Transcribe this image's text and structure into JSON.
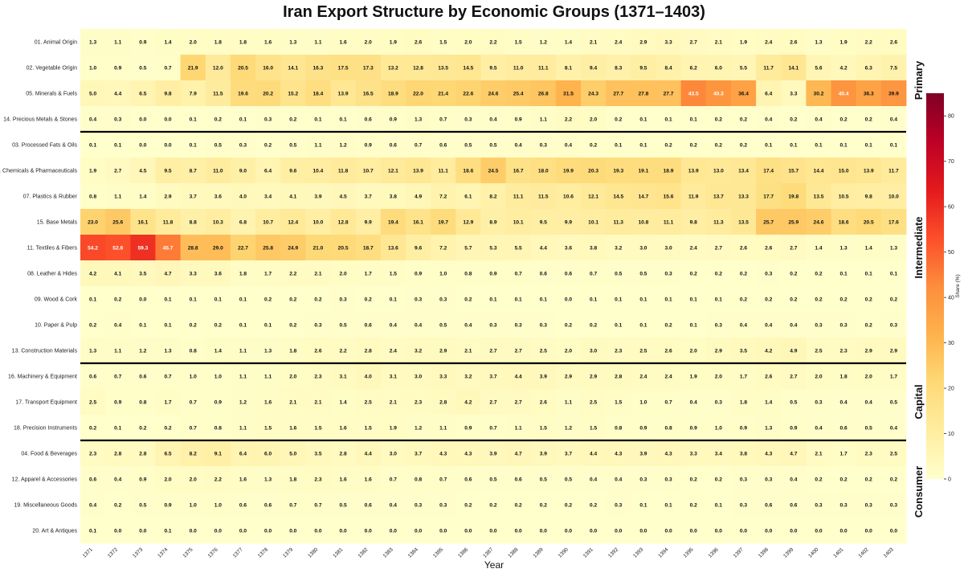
{
  "chart_data": {
    "type": "heatmap",
    "title": "Iran Export Structure by Economic Groups (1371–1403)",
    "xlabel": "Year",
    "colorbar_label": "Share (%)",
    "colorbar_ticks": [
      0,
      10,
      20,
      30,
      40,
      50,
      60,
      70,
      80
    ],
    "color_range": [
      0,
      85
    ],
    "colormap": [
      "#ffffcc",
      "#ffeda0",
      "#fed976",
      "#feb24c",
      "#fd8d3c",
      "#fc4e2a",
      "#e31a1c",
      "#bd0026",
      "#800026"
    ],
    "x": [
      "1371",
      "1372",
      "1373",
      "1374",
      "1375",
      "1376",
      "1377",
      "1378",
      "1379",
      "1380",
      "1381",
      "1382",
      "1383",
      "1384",
      "1385",
      "1386",
      "1387",
      "1388",
      "1389",
      "1390",
      "1391",
      "1392",
      "1393",
      "1394",
      "1395",
      "1396",
      "1397",
      "1398",
      "1399",
      "1400",
      "1401",
      "1402",
      "1403"
    ],
    "groups": [
      {
        "name": "Primary",
        "rows": [
          0,
          1,
          2,
          3
        ]
      },
      {
        "name": "Intermediate",
        "rows": [
          4,
          5,
          6,
          7,
          8,
          9,
          10,
          11,
          12
        ]
      },
      {
        "name": "Capital",
        "rows": [
          13,
          14,
          15
        ]
      },
      {
        "name": "Consumer",
        "rows": [
          16,
          17,
          18,
          19
        ]
      }
    ],
    "rows": [
      {
        "label": "01. Animal Origin",
        "values": [
          1.3,
          1.1,
          0.9,
          1.4,
          2.0,
          1.8,
          1.8,
          1.6,
          1.3,
          1.1,
          1.6,
          2.0,
          1.9,
          2.6,
          1.5,
          2.0,
          2.2,
          1.5,
          1.2,
          1.4,
          2.1,
          2.4,
          2.9,
          3.3,
          2.7,
          2.1,
          1.9,
          2.4,
          2.6,
          1.3,
          1.9,
          2.2,
          2.6
        ]
      },
      {
        "label": "02. Vegetable Origin",
        "values": [
          1.0,
          0.9,
          0.5,
          0.7,
          21.9,
          12.0,
          20.5,
          16.0,
          14.1,
          16.3,
          17.5,
          17.3,
          13.2,
          12.8,
          13.5,
          14.5,
          9.5,
          11.0,
          11.1,
          8.1,
          9.4,
          8.3,
          9.5,
          8.4,
          6.2,
          6.0,
          5.5,
          11.7,
          14.1,
          5.6,
          4.2,
          6.3,
          7.5
        ]
      },
      {
        "label": "05. Minerals & Fuels",
        "values": [
          5.0,
          4.4,
          6.5,
          9.8,
          7.9,
          11.5,
          19.6,
          20.2,
          15.2,
          18.4,
          13.9,
          16.5,
          18.9,
          22.0,
          21.4,
          22.6,
          24.6,
          25.4,
          26.8,
          31.5,
          24.3,
          27.7,
          27.8,
          27.7,
          43.5,
          40.3,
          36.4,
          6.4,
          3.3,
          30.2,
          40.4,
          36.3,
          39.9
        ]
      },
      {
        "label": "14. Precious Metals & Stones",
        "values": [
          0.4,
          0.3,
          0.0,
          0.0,
          0.1,
          0.2,
          0.1,
          0.3,
          0.2,
          0.1,
          0.1,
          0.6,
          0.9,
          1.3,
          0.7,
          0.3,
          0.4,
          0.9,
          1.1,
          2.2,
          2.0,
          0.2,
          0.1,
          0.1,
          0.1,
          0.2,
          0.2,
          0.4,
          0.2,
          0.4,
          0.2,
          0.2,
          0.4
        ]
      },
      {
        "label": "03. Processed Fats & Oils",
        "values": [
          0.1,
          0.1,
          0.0,
          0.0,
          0.1,
          0.5,
          0.3,
          0.2,
          0.5,
          1.1,
          1.2,
          0.9,
          0.6,
          0.7,
          0.6,
          0.5,
          0.5,
          0.4,
          0.3,
          0.4,
          0.2,
          0.1,
          0.1,
          0.2,
          0.2,
          0.2,
          0.2,
          0.1,
          0.1,
          0.1,
          0.1,
          0.1,
          0.1
        ]
      },
      {
        "label": "06. Chemicals & Pharmaceuticals",
        "values": [
          1.9,
          2.7,
          4.5,
          9.5,
          8.7,
          11.0,
          9.0,
          6.4,
          9.6,
          10.4,
          11.8,
          10.7,
          12.1,
          13.9,
          11.1,
          18.6,
          24.5,
          16.7,
          18.0,
          19.9,
          20.3,
          19.3,
          19.1,
          18.9,
          13.9,
          13.0,
          13.4,
          17.4,
          15.7,
          14.4,
          15.0,
          13.9,
          11.7
        ]
      },
      {
        "label": "07. Plastics & Rubber",
        "values": [
          0.8,
          1.1,
          1.4,
          2.9,
          3.7,
          3.6,
          4.0,
          3.4,
          4.1,
          3.9,
          4.5,
          3.7,
          3.8,
          4.9,
          7.2,
          6.1,
          8.2,
          11.1,
          11.5,
          10.6,
          12.1,
          14.5,
          14.7,
          15.6,
          11.9,
          13.7,
          13.3,
          17.7,
          19.8,
          13.5,
          10.5,
          9.8,
          10.0
        ]
      },
      {
        "label": "15. Base Metals",
        "values": [
          23.0,
          25.6,
          16.1,
          11.8,
          8.8,
          10.3,
          6.8,
          10.7,
          12.4,
          10.0,
          12.8,
          9.9,
          19.4,
          16.1,
          19.7,
          12.9,
          8.9,
          10.1,
          9.5,
          9.9,
          10.1,
          11.3,
          10.8,
          11.1,
          9.8,
          11.3,
          13.5,
          25.7,
          25.9,
          24.6,
          18.6,
          20.5,
          17.6
        ]
      },
      {
        "label": "11. Textiles & Fibers",
        "values": [
          54.2,
          52.8,
          59.3,
          45.7,
          28.8,
          29.0,
          22.7,
          25.8,
          24.9,
          21.0,
          20.5,
          18.7,
          13.6,
          9.6,
          7.2,
          5.7,
          5.3,
          5.5,
          4.4,
          3.6,
          3.8,
          3.2,
          3.0,
          3.0,
          2.4,
          2.7,
          2.6,
          2.6,
          2.7,
          1.4,
          1.3,
          1.4,
          1.3
        ]
      },
      {
        "label": "08. Leather & Hides",
        "values": [
          4.2,
          4.1,
          3.5,
          4.7,
          3.3,
          3.6,
          1.8,
          1.7,
          2.2,
          2.1,
          2.0,
          1.7,
          1.5,
          0.9,
          1.0,
          0.8,
          0.9,
          0.7,
          0.6,
          0.6,
          0.7,
          0.5,
          0.5,
          0.3,
          0.2,
          0.2,
          0.2,
          0.3,
          0.2,
          0.2,
          0.1,
          0.1,
          0.1
        ]
      },
      {
        "label": "09. Wood & Cork",
        "values": [
          0.1,
          0.2,
          0.0,
          0.1,
          0.1,
          0.1,
          0.1,
          0.2,
          0.2,
          0.2,
          0.3,
          0.2,
          0.1,
          0.3,
          0.3,
          0.2,
          0.1,
          0.1,
          0.1,
          0.0,
          0.1,
          0.1,
          0.1,
          0.1,
          0.1,
          0.1,
          0.2,
          0.2,
          0.2,
          0.2,
          0.2,
          0.2,
          0.2
        ]
      },
      {
        "label": "10. Paper & Pulp",
        "values": [
          0.2,
          0.4,
          0.1,
          0.1,
          0.2,
          0.2,
          0.1,
          0.1,
          0.2,
          0.3,
          0.5,
          0.6,
          0.4,
          0.4,
          0.5,
          0.4,
          0.3,
          0.3,
          0.3,
          0.2,
          0.2,
          0.1,
          0.1,
          0.2,
          0.1,
          0.3,
          0.4,
          0.4,
          0.4,
          0.3,
          0.3,
          0.2,
          0.3
        ]
      },
      {
        "label": "13. Construction Materials",
        "values": [
          1.3,
          1.1,
          1.2,
          1.3,
          0.8,
          1.4,
          1.1,
          1.3,
          1.8,
          2.6,
          2.2,
          2.8,
          2.4,
          3.2,
          2.9,
          2.1,
          2.7,
          2.7,
          2.5,
          2.0,
          3.0,
          2.3,
          2.5,
          2.6,
          2.0,
          2.9,
          3.5,
          4.2,
          4.9,
          2.5,
          2.3,
          2.9,
          2.9
        ]
      },
      {
        "label": "16. Machinery & Equipment",
        "values": [
          0.6,
          0.7,
          0.6,
          0.7,
          1.0,
          1.0,
          1.1,
          1.1,
          2.0,
          2.3,
          3.1,
          4.0,
          3.1,
          3.0,
          3.3,
          3.2,
          3.7,
          4.4,
          3.9,
          2.9,
          2.9,
          2.8,
          2.4,
          2.4,
          1.9,
          2.0,
          1.7,
          2.6,
          2.7,
          2.0,
          1.8,
          2.0,
          1.7
        ]
      },
      {
        "label": "17. Transport Equipment",
        "values": [
          2.5,
          0.9,
          0.8,
          1.7,
          0.7,
          0.9,
          1.2,
          1.6,
          2.1,
          2.1,
          1.4,
          2.5,
          2.1,
          2.3,
          2.8,
          4.2,
          2.7,
          2.7,
          2.6,
          1.1,
          2.5,
          1.5,
          1.0,
          0.7,
          0.4,
          0.3,
          1.8,
          1.4,
          0.5,
          0.3,
          0.4,
          0.4,
          0.5
        ]
      },
      {
        "label": "18. Precision Instruments",
        "values": [
          0.2,
          0.1,
          0.2,
          0.2,
          0.7,
          0.8,
          1.1,
          1.5,
          1.6,
          1.5,
          1.6,
          1.5,
          1.9,
          1.2,
          1.1,
          0.9,
          0.7,
          1.1,
          1.5,
          1.2,
          1.5,
          0.8,
          0.9,
          0.8,
          0.9,
          1.0,
          0.9,
          1.3,
          0.9,
          0.4,
          0.6,
          0.5,
          0.4
        ]
      },
      {
        "label": "04. Food & Beverages",
        "values": [
          2.3,
          2.8,
          2.8,
          6.5,
          8.2,
          9.1,
          6.4,
          6.0,
          5.0,
          3.5,
          2.8,
          4.4,
          3.0,
          3.7,
          4.3,
          4.3,
          3.9,
          4.7,
          3.9,
          3.7,
          4.4,
          4.3,
          3.9,
          4.3,
          3.3,
          3.4,
          3.8,
          4.3,
          4.7,
          2.1,
          1.7,
          2.3,
          2.5
        ]
      },
      {
        "label": "12. Apparel & Accessories",
        "values": [
          0.6,
          0.4,
          0.9,
          2.0,
          2.0,
          2.2,
          1.6,
          1.3,
          1.8,
          2.3,
          1.6,
          1.6,
          0.7,
          0.8,
          0.7,
          0.6,
          0.5,
          0.6,
          0.5,
          0.5,
          0.4,
          0.4,
          0.3,
          0.3,
          0.2,
          0.2,
          0.3,
          0.3,
          0.4,
          0.2,
          0.2,
          0.2,
          0.2
        ]
      },
      {
        "label": "19. Miscellaneous Goods",
        "values": [
          0.4,
          0.2,
          0.5,
          0.9,
          1.0,
          1.0,
          0.6,
          0.6,
          0.7,
          0.7,
          0.5,
          0.6,
          0.4,
          0.3,
          0.3,
          0.2,
          0.2,
          0.2,
          0.2,
          0.2,
          0.2,
          0.3,
          0.1,
          0.1,
          0.2,
          0.1,
          0.3,
          0.6,
          0.6,
          0.3,
          0.3,
          0.3,
          0.3
        ]
      },
      {
        "label": "20. Art & Antiques",
        "values": [
          0.1,
          0.0,
          0.0,
          0.1,
          0.0,
          0.0,
          0.0,
          0.0,
          0.0,
          0.0,
          0.0,
          0.0,
          0.0,
          0.0,
          0.0,
          0.0,
          0.0,
          0.0,
          0.0,
          0.0,
          0.0,
          0.0,
          0.0,
          0.0,
          0.0,
          0.0,
          0.0,
          0.0,
          0.0,
          0.0,
          0.0,
          0.0,
          0.0
        ]
      }
    ]
  }
}
